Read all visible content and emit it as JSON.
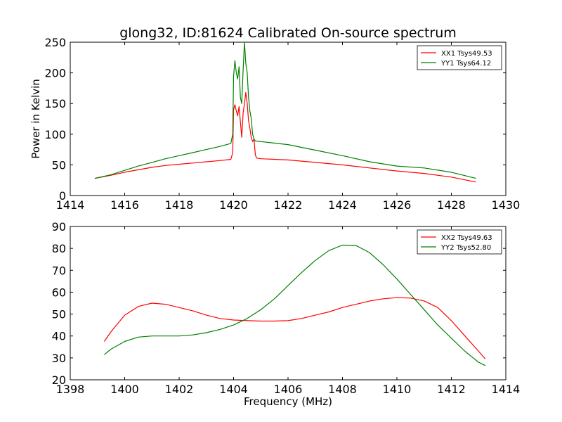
{
  "title": "glong32, ID:81624 Calibrated On-source spectrum",
  "chart_data": [
    {
      "type": "line",
      "title": "glong32, ID:81624 Calibrated On-source spectrum",
      "xlabel": "",
      "ylabel": "Power in Kelvin",
      "xlim": [
        1414,
        1430
      ],
      "ylim": [
        0,
        250
      ],
      "xticks": [
        1414,
        1416,
        1418,
        1420,
        1422,
        1424,
        1426,
        1428,
        1430
      ],
      "yticks": [
        0,
        50,
        100,
        150,
        200,
        250
      ],
      "grid": false,
      "legend_position": "top-right",
      "series": [
        {
          "name": "XX1 Tsys49.53",
          "color": "#ff0000",
          "points": [
            [
              1414.9,
              28
            ],
            [
              1415.5,
              33
            ],
            [
              1416,
              38
            ],
            [
              1416.5,
              42
            ],
            [
              1417,
              46
            ],
            [
              1417.5,
              49
            ],
            [
              1418,
              51
            ],
            [
              1418.5,
              53
            ],
            [
              1419,
              55
            ],
            [
              1419.5,
              57
            ],
            [
              1419.9,
              59
            ],
            [
              1419.97,
              70
            ],
            [
              1420.0,
              140
            ],
            [
              1420.05,
              148
            ],
            [
              1420.1,
              138
            ],
            [
              1420.15,
              130
            ],
            [
              1420.2,
              145
            ],
            [
              1420.25,
              120
            ],
            [
              1420.3,
              95
            ],
            [
              1420.35,
              135
            ],
            [
              1420.4,
              150
            ],
            [
              1420.45,
              168
            ],
            [
              1420.5,
              150
            ],
            [
              1420.55,
              122
            ],
            [
              1420.6,
              110
            ],
            [
              1420.65,
              94
            ],
            [
              1420.7,
              88
            ],
            [
              1420.75,
              92
            ],
            [
              1420.8,
              66
            ],
            [
              1420.85,
              61
            ],
            [
              1421,
              60
            ],
            [
              1422,
              58
            ],
            [
              1423,
              54
            ],
            [
              1424,
              50
            ],
            [
              1425,
              45
            ],
            [
              1426,
              40
            ],
            [
              1427,
              36
            ],
            [
              1428,
              30
            ],
            [
              1428.9,
              22
            ]
          ]
        },
        {
          "name": "YY1 Tsys64.12",
          "color": "#008000",
          "points": [
            [
              1414.9,
              28
            ],
            [
              1415.5,
              34
            ],
            [
              1416,
              41
            ],
            [
              1416.5,
              48
            ],
            [
              1417,
              54
            ],
            [
              1417.5,
              60
            ],
            [
              1418,
              65
            ],
            [
              1418.5,
              70
            ],
            [
              1419,
              75
            ],
            [
              1419.5,
              80
            ],
            [
              1419.9,
              85
            ],
            [
              1419.97,
              100
            ],
            [
              1420.0,
              195
            ],
            [
              1420.05,
              220
            ],
            [
              1420.1,
              200
            ],
            [
              1420.15,
              190
            ],
            [
              1420.2,
              210
            ],
            [
              1420.25,
              160
            ],
            [
              1420.3,
              150
            ],
            [
              1420.35,
              205
            ],
            [
              1420.4,
              250
            ],
            [
              1420.45,
              215
            ],
            [
              1420.5,
              200
            ],
            [
              1420.55,
              160
            ],
            [
              1420.6,
              138
            ],
            [
              1420.65,
              125
            ],
            [
              1420.7,
              100
            ],
            [
              1420.75,
              92
            ],
            [
              1420.8,
              89
            ],
            [
              1421,
              88
            ],
            [
              1422,
              83
            ],
            [
              1423,
              74
            ],
            [
              1424,
              65
            ],
            [
              1425,
              55
            ],
            [
              1426,
              48
            ],
            [
              1427,
              45
            ],
            [
              1428,
              38
            ],
            [
              1428.9,
              28
            ]
          ]
        }
      ]
    },
    {
      "type": "line",
      "title": "",
      "xlabel": "Frequency (MHz)",
      "ylabel": "",
      "xlim": [
        1398,
        1414
      ],
      "ylim": [
        20,
        90
      ],
      "xticks": [
        1398,
        1400,
        1402,
        1404,
        1406,
        1408,
        1410,
        1412,
        1414
      ],
      "yticks": [
        20,
        30,
        40,
        50,
        60,
        70,
        80,
        90
      ],
      "grid": false,
      "legend_position": "top-right",
      "series": [
        {
          "name": "XX2 Tsys49.63",
          "color": "#ff0000",
          "points": [
            [
              1399.25,
              37.5
            ],
            [
              1399.5,
              42
            ],
            [
              1400,
              49.5
            ],
            [
              1400.5,
              53.5
            ],
            [
              1401,
              55
            ],
            [
              1401.5,
              54.5
            ],
            [
              1402,
              53
            ],
            [
              1402.5,
              51.5
            ],
            [
              1403,
              49.5
            ],
            [
              1403.5,
              48
            ],
            [
              1404,
              47.3
            ],
            [
              1404.5,
              47
            ],
            [
              1405,
              46.8
            ],
            [
              1405.5,
              46.8
            ],
            [
              1406,
              47
            ],
            [
              1406.5,
              48
            ],
            [
              1407,
              49.5
            ],
            [
              1407.5,
              51
            ],
            [
              1408,
              53
            ],
            [
              1408.5,
              54.5
            ],
            [
              1409,
              56
            ],
            [
              1409.5,
              57
            ],
            [
              1410,
              57.5
            ],
            [
              1410.5,
              57.3
            ],
            [
              1411,
              56
            ],
            [
              1411.5,
              53
            ],
            [
              1412,
              47
            ],
            [
              1412.5,
              40
            ],
            [
              1413,
              33
            ],
            [
              1413.25,
              29.5
            ]
          ]
        },
        {
          "name": "YY2 Tsys52.80",
          "color": "#008000",
          "points": [
            [
              1399.25,
              31.5
            ],
            [
              1399.5,
              34
            ],
            [
              1400,
              37.5
            ],
            [
              1400.5,
              39.5
            ],
            [
              1401,
              40
            ],
            [
              1401.5,
              40
            ],
            [
              1402,
              40
            ],
            [
              1402.5,
              40.5
            ],
            [
              1403,
              41.5
            ],
            [
              1403.5,
              43
            ],
            [
              1404,
              45
            ],
            [
              1404.5,
              48
            ],
            [
              1405,
              52
            ],
            [
              1405.5,
              57
            ],
            [
              1406,
              63
            ],
            [
              1406.5,
              69
            ],
            [
              1407,
              74.5
            ],
            [
              1407.5,
              79
            ],
            [
              1408,
              81.5
            ],
            [
              1408.5,
              81.3
            ],
            [
              1409,
              78
            ],
            [
              1409.5,
              72.5
            ],
            [
              1410,
              66
            ],
            [
              1410.5,
              59
            ],
            [
              1411,
              52
            ],
            [
              1411.5,
              45
            ],
            [
              1412,
              39
            ],
            [
              1412.5,
              33
            ],
            [
              1413,
              28
            ],
            [
              1413.25,
              26.5
            ]
          ]
        }
      ]
    }
  ]
}
